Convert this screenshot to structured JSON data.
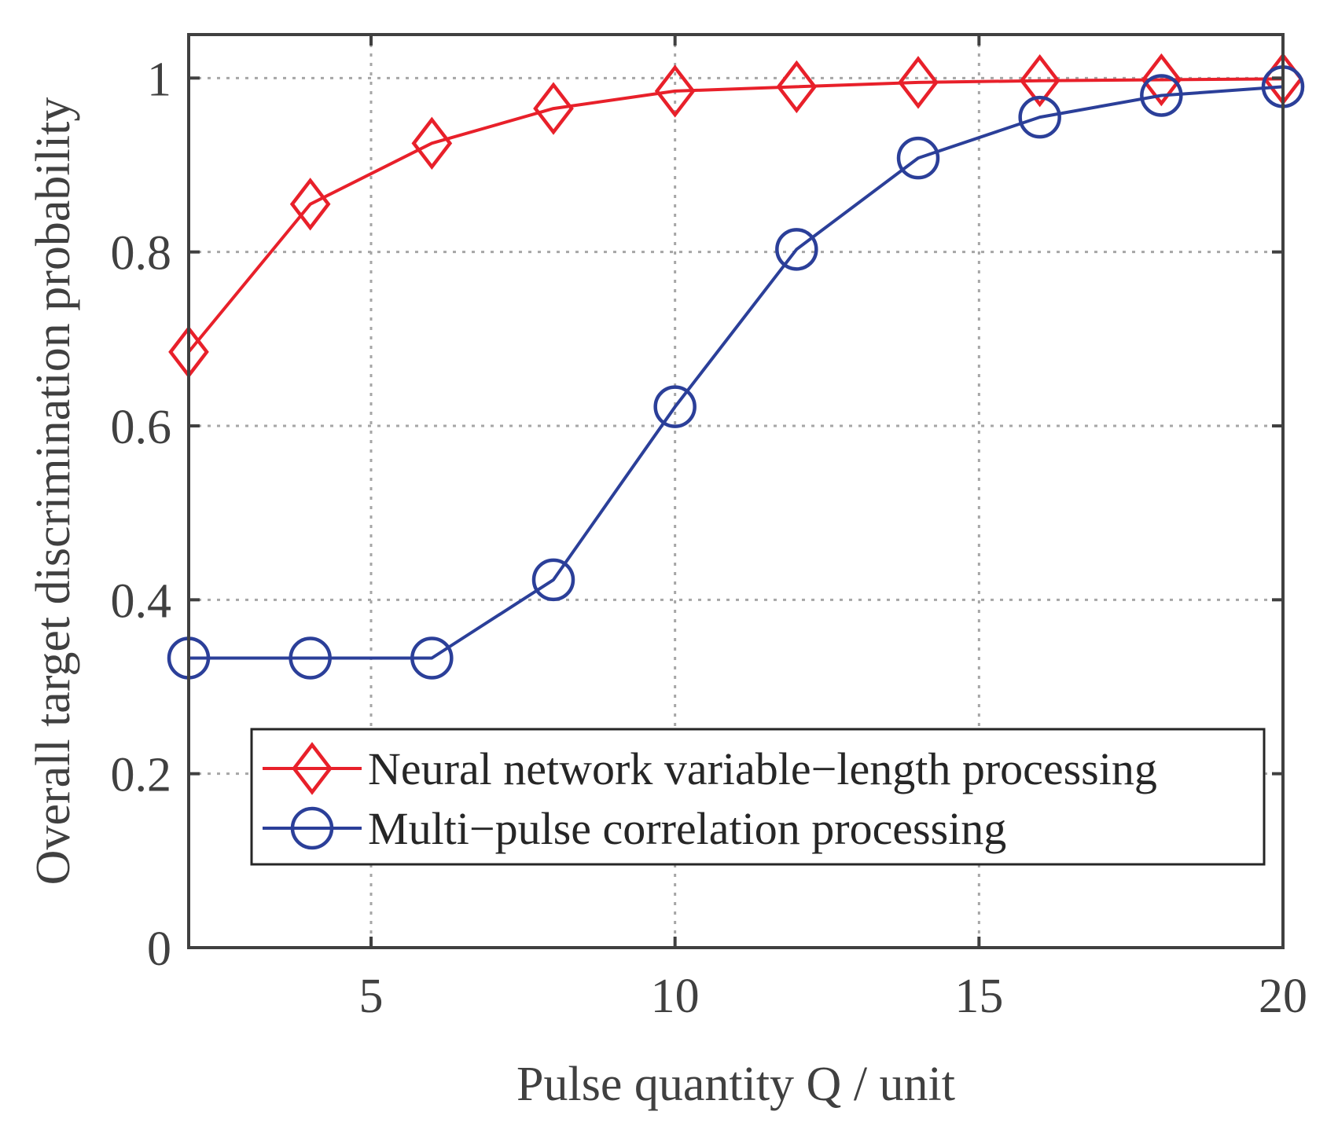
{
  "chart_data": {
    "type": "line",
    "title": "",
    "xlabel": "Pulse quantity Q / unit",
    "ylabel": "Overall target discrimination probability",
    "xlim": [
      2,
      20
    ],
    "ylim": [
      0,
      1.05
    ],
    "xticks": [
      5,
      10,
      15,
      20
    ],
    "xtick_labels": [
      "5",
      "10",
      "15",
      "20"
    ],
    "yticks": [
      0,
      0.2,
      0.4,
      0.6,
      0.8,
      1
    ],
    "ytick_labels": [
      "0",
      "0.2",
      "0.4",
      "0.6",
      "0.8",
      "1"
    ],
    "grid": true,
    "legend_position": "lower-right",
    "x": [
      2,
      4,
      6,
      8,
      10,
      12,
      14,
      16,
      18,
      20
    ],
    "series": [
      {
        "name": "Neural network variable−length processing",
        "marker": "diamond",
        "color": "#e8202a",
        "values": [
          0.685,
          0.855,
          0.925,
          0.965,
          0.985,
          0.99,
          0.995,
          0.997,
          0.998,
          0.999
        ]
      },
      {
        "name": "Multi−pulse correlation processing",
        "marker": "circle",
        "color": "#2b3f99",
        "values": [
          0.333,
          0.333,
          0.333,
          0.423,
          0.622,
          0.803,
          0.908,
          0.955,
          0.98,
          0.99
        ]
      }
    ]
  }
}
